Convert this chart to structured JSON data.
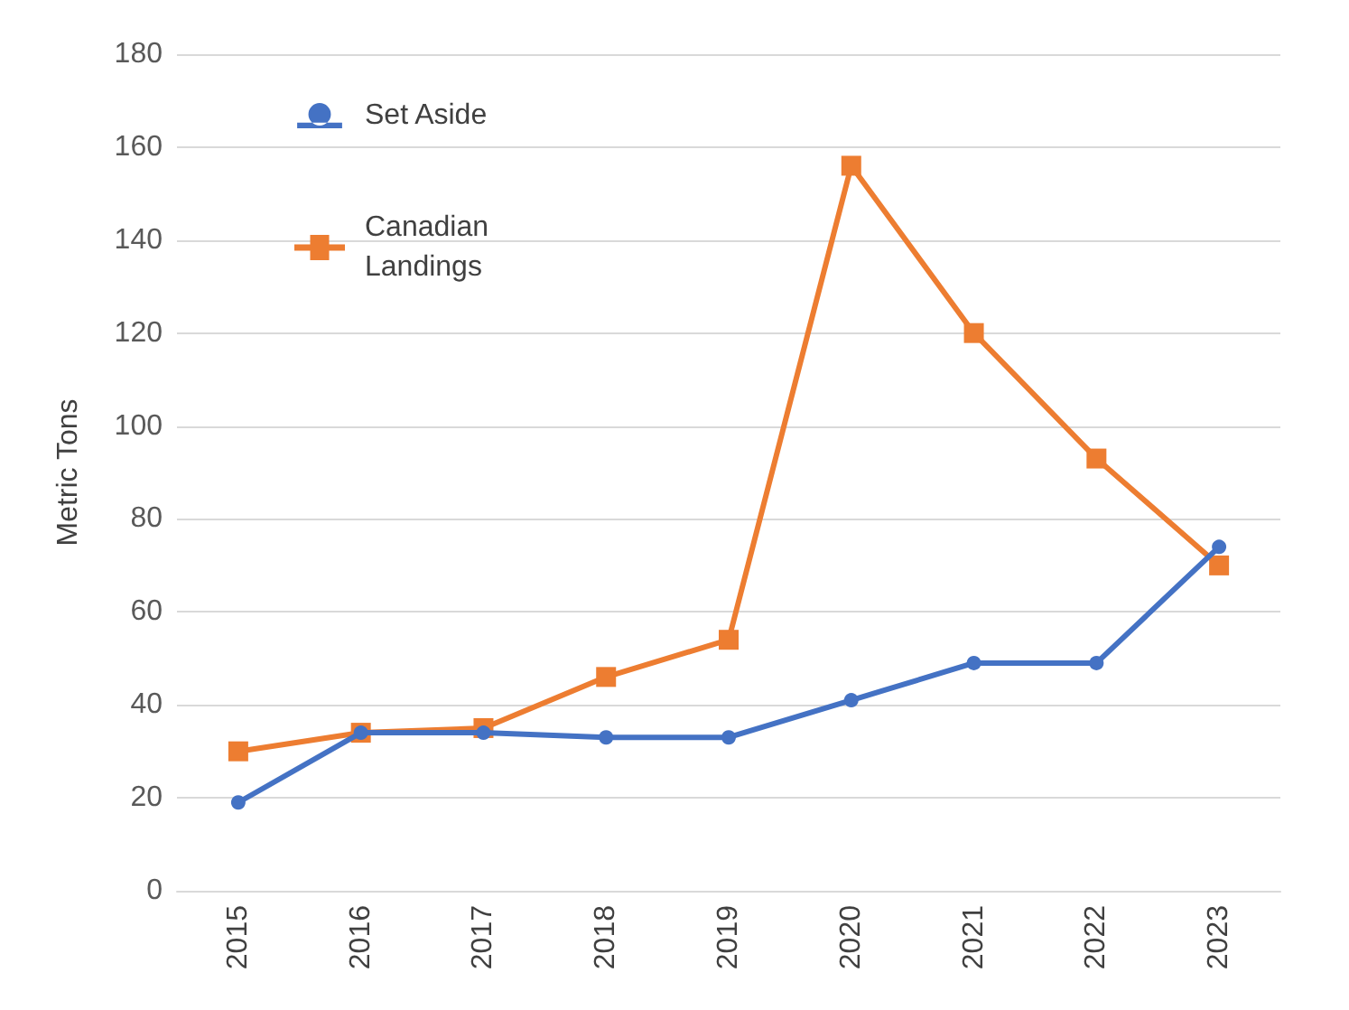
{
  "chart_data": {
    "type": "line",
    "ylabel": "Metric Tons",
    "categories": [
      "2015",
      "2016",
      "2017",
      "2018",
      "2019",
      "2020",
      "2021",
      "2022",
      "2023"
    ],
    "series": [
      {
        "name": "Set Aside",
        "color": "#4472c4",
        "marker": "circle",
        "values": [
          19,
          34,
          34,
          33,
          33,
          41,
          49,
          49,
          74
        ]
      },
      {
        "name": "Canadian Landings",
        "color": "#ed7d31",
        "marker": "square",
        "values": [
          30,
          34,
          35,
          46,
          54,
          156,
          120,
          93,
          70
        ]
      }
    ],
    "ylim": [
      0,
      180
    ],
    "yticks": [
      0,
      20,
      40,
      60,
      80,
      100,
      120,
      140,
      160,
      180
    ],
    "grid": "y",
    "legend": "top left"
  }
}
